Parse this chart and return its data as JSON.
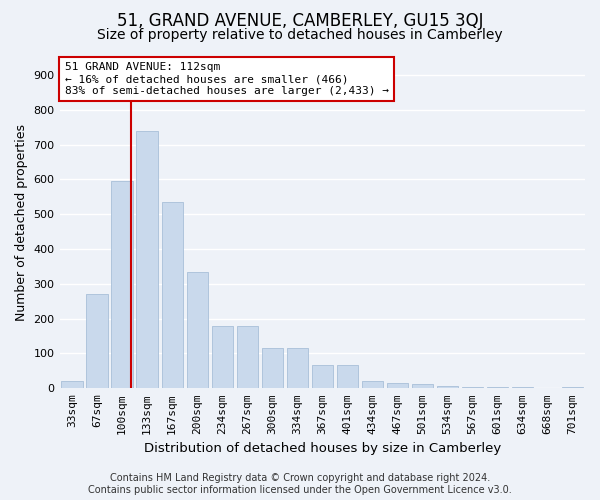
{
  "title": "51, GRAND AVENUE, CAMBERLEY, GU15 3QJ",
  "subtitle": "Size of property relative to detached houses in Camberley",
  "xlabel": "Distribution of detached houses by size in Camberley",
  "ylabel": "Number of detached properties",
  "bar_labels": [
    "33sqm",
    "67sqm",
    "100sqm",
    "133sqm",
    "167sqm",
    "200sqm",
    "234sqm",
    "267sqm",
    "300sqm",
    "334sqm",
    "367sqm",
    "401sqm",
    "434sqm",
    "467sqm",
    "501sqm",
    "534sqm",
    "567sqm",
    "601sqm",
    "634sqm",
    "668sqm",
    "701sqm"
  ],
  "bar_values": [
    20,
    270,
    595,
    740,
    535,
    335,
    178,
    178,
    115,
    115,
    68,
    68,
    22,
    15,
    12,
    7,
    5,
    5,
    3,
    2,
    5
  ],
  "bar_color": "#c9d9ec",
  "bar_edge_color": "#a8bfd8",
  "background_color": "#eef2f8",
  "grid_color": "#ffffff",
  "ylim": [
    0,
    950
  ],
  "yticks": [
    0,
    100,
    200,
    300,
    400,
    500,
    600,
    700,
    800,
    900
  ],
  "vline_color": "#cc0000",
  "vline_x": 2.37,
  "annotation_text": "51 GRAND AVENUE: 112sqm\n← 16% of detached houses are smaller (466)\n83% of semi-detached houses are larger (2,433) →",
  "annotation_box_color": "#ffffff",
  "annotation_box_edge": "#cc0000",
  "footer_line1": "Contains HM Land Registry data © Crown copyright and database right 2024.",
  "footer_line2": "Contains public sector information licensed under the Open Government Licence v3.0.",
  "title_fontsize": 12,
  "subtitle_fontsize": 10,
  "xlabel_fontsize": 9.5,
  "ylabel_fontsize": 9,
  "tick_fontsize": 8,
  "annot_fontsize": 8,
  "footer_fontsize": 7
}
